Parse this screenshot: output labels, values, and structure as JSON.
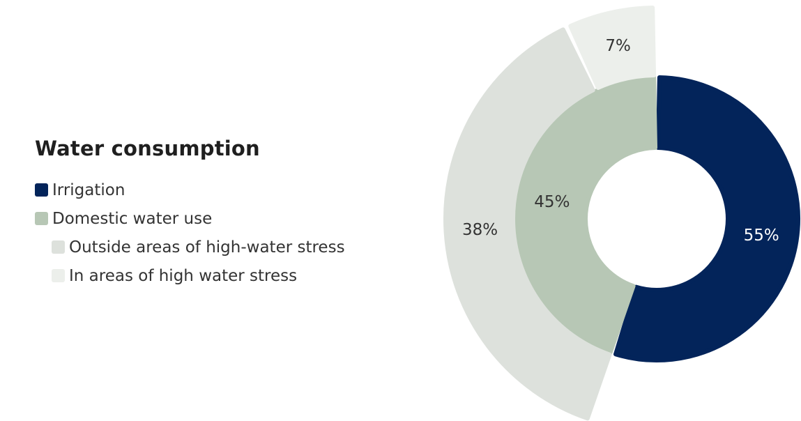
{
  "chart_data": {
    "type": "pie",
    "title": "Water consumption",
    "inner_ring": [
      {
        "name": "Irrigation",
        "value": 55,
        "label": "55%",
        "color": "#03245a",
        "label_color": "#ffffff"
      },
      {
        "name": "Domestic water use",
        "value": 45,
        "label": "45%",
        "color": "#b7c7b5",
        "label_color": "#333333"
      }
    ],
    "outer_ring": [
      {
        "name": "Outside areas of high-water stress",
        "value": 38,
        "label": "38%",
        "color": "#dde1dc",
        "label_color": "#333333"
      },
      {
        "name": "In areas of high water stress",
        "value": 7,
        "label": "7%",
        "color": "#ecefeb",
        "label_color": "#333333"
      }
    ],
    "legend": [
      {
        "label": "Irrigation",
        "color": "#03245a",
        "level": 0
      },
      {
        "label": "Domestic water use",
        "color": "#b7c7b5",
        "level": 0
      },
      {
        "label": "Outside areas of high-water stress",
        "color": "#dde1dc",
        "level": 1
      },
      {
        "label": "In areas of high water stress",
        "color": "#ecefeb",
        "level": 1
      }
    ],
    "legend_placement": "left"
  }
}
